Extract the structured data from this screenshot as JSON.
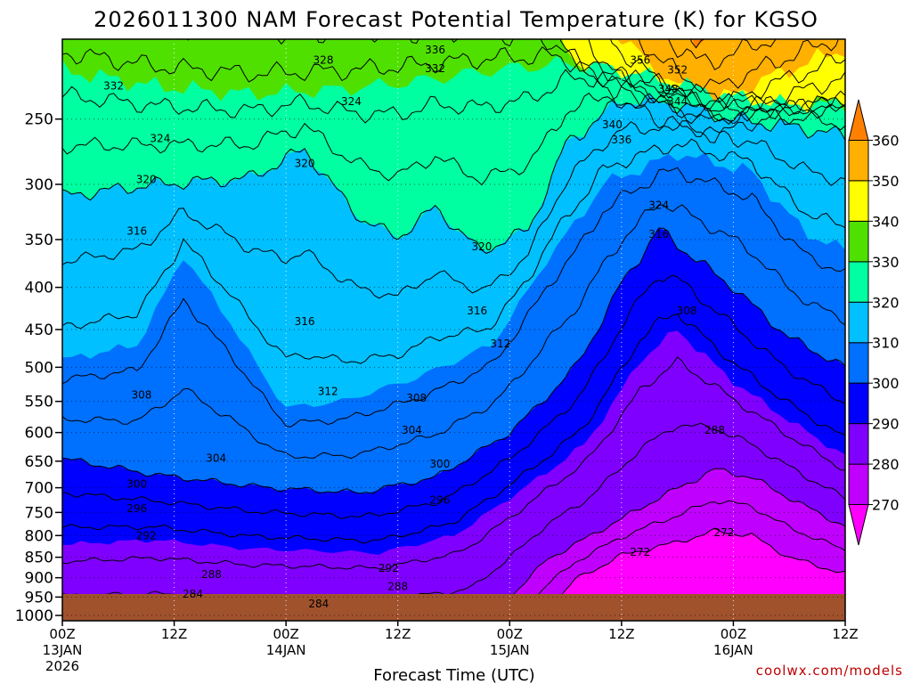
{
  "chart_data": {
    "type": "heatmap",
    "title": "2026011300 NAM Forecast Potential Temperature (K) for KGSO",
    "xlabel": "Forecast Time (UTC)",
    "ylabel": "",
    "credit": "coolwx.com/models",
    "x_ticks": [
      {
        "hour": 0,
        "lines": [
          "00Z",
          "13JAN",
          "2026"
        ]
      },
      {
        "hour": 12,
        "lines": [
          "12Z"
        ]
      },
      {
        "hour": 24,
        "lines": [
          "00Z",
          "14JAN"
        ]
      },
      {
        "hour": 36,
        "lines": [
          "12Z"
        ]
      },
      {
        "hour": 48,
        "lines": [
          "00Z",
          "15JAN"
        ]
      },
      {
        "hour": 60,
        "lines": [
          "12Z"
        ]
      },
      {
        "hour": 72,
        "lines": [
          "00Z",
          "16JAN"
        ]
      },
      {
        "hour": 84,
        "lines": [
          "12Z"
        ]
      }
    ],
    "xlim": [
      0,
      84
    ],
    "y_ticks": [
      250,
      300,
      350,
      400,
      450,
      500,
      550,
      600,
      650,
      700,
      750,
      800,
      850,
      900,
      950,
      1000
    ],
    "ylim": [
      200,
      1015
    ],
    "y_scale": "log",
    "y_inverted": true,
    "colorbar": {
      "levels": [
        270,
        280,
        290,
        300,
        310,
        320,
        330,
        340,
        350,
        360
      ],
      "colors": [
        "#ff00ff",
        "#c000ff",
        "#8000ff",
        "#0000ff",
        "#0070ff",
        "#00c0ff",
        "#00ffa0",
        "#50e000",
        "#ffff00",
        "#ffb000",
        "#ff8000"
      ]
    },
    "ground_color": "#a0522d",
    "contour_labels": [
      {
        "value": "332",
        "hour": 5.5,
        "p": 228
      },
      {
        "value": "328",
        "hour": 28,
        "p": 212
      },
      {
        "value": "336",
        "hour": 40,
        "p": 206
      },
      {
        "value": "332",
        "hour": 40,
        "p": 217
      },
      {
        "value": "356",
        "hour": 62,
        "p": 212
      },
      {
        "value": "352",
        "hour": 66,
        "p": 218
      },
      {
        "value": "348",
        "hour": 65,
        "p": 230
      },
      {
        "value": "344",
        "hour": 66,
        "p": 238
      },
      {
        "value": "340",
        "hour": 59,
        "p": 254
      },
      {
        "value": "336",
        "hour": 60,
        "p": 265
      },
      {
        "value": "324",
        "hour": 10.5,
        "p": 264
      },
      {
        "value": "324",
        "hour": 31,
        "p": 238
      },
      {
        "value": "320",
        "hour": 9,
        "p": 296
      },
      {
        "value": "320",
        "hour": 26,
        "p": 283
      },
      {
        "value": "324",
        "hour": 64,
        "p": 318
      },
      {
        "value": "316",
        "hour": 8,
        "p": 342
      },
      {
        "value": "316",
        "hour": 64,
        "p": 345
      },
      {
        "value": "320",
        "hour": 45,
        "p": 357
      },
      {
        "value": "308",
        "hour": 67,
        "p": 427
      },
      {
        "value": "316",
        "hour": 26,
        "p": 440
      },
      {
        "value": "316",
        "hour": 44.5,
        "p": 427
      },
      {
        "value": "312",
        "hour": 47,
        "p": 468
      },
      {
        "value": "308",
        "hour": 8.5,
        "p": 540
      },
      {
        "value": "312",
        "hour": 28.5,
        "p": 535
      },
      {
        "value": "308",
        "hour": 38,
        "p": 545
      },
      {
        "value": "304",
        "hour": 37.5,
        "p": 596
      },
      {
        "value": "288",
        "hour": 70,
        "p": 596
      },
      {
        "value": "304",
        "hour": 16.5,
        "p": 645
      },
      {
        "value": "300",
        "hour": 40.5,
        "p": 655
      },
      {
        "value": "300",
        "hour": 8,
        "p": 693
      },
      {
        "value": "296",
        "hour": 40.5,
        "p": 725
      },
      {
        "value": "296",
        "hour": 8,
        "p": 742
      },
      {
        "value": "292",
        "hour": 9,
        "p": 800
      },
      {
        "value": "272",
        "hour": 71,
        "p": 793
      },
      {
        "value": "272",
        "hour": 62,
        "p": 838
      },
      {
        "value": "292",
        "hour": 35,
        "p": 876
      },
      {
        "value": "288",
        "hour": 16,
        "p": 892
      },
      {
        "value": "288",
        "hour": 36,
        "p": 922
      },
      {
        "value": "284",
        "hour": 14,
        "p": 942
      },
      {
        "value": "284",
        "hour": 27.5,
        "p": 968
      }
    ]
  }
}
